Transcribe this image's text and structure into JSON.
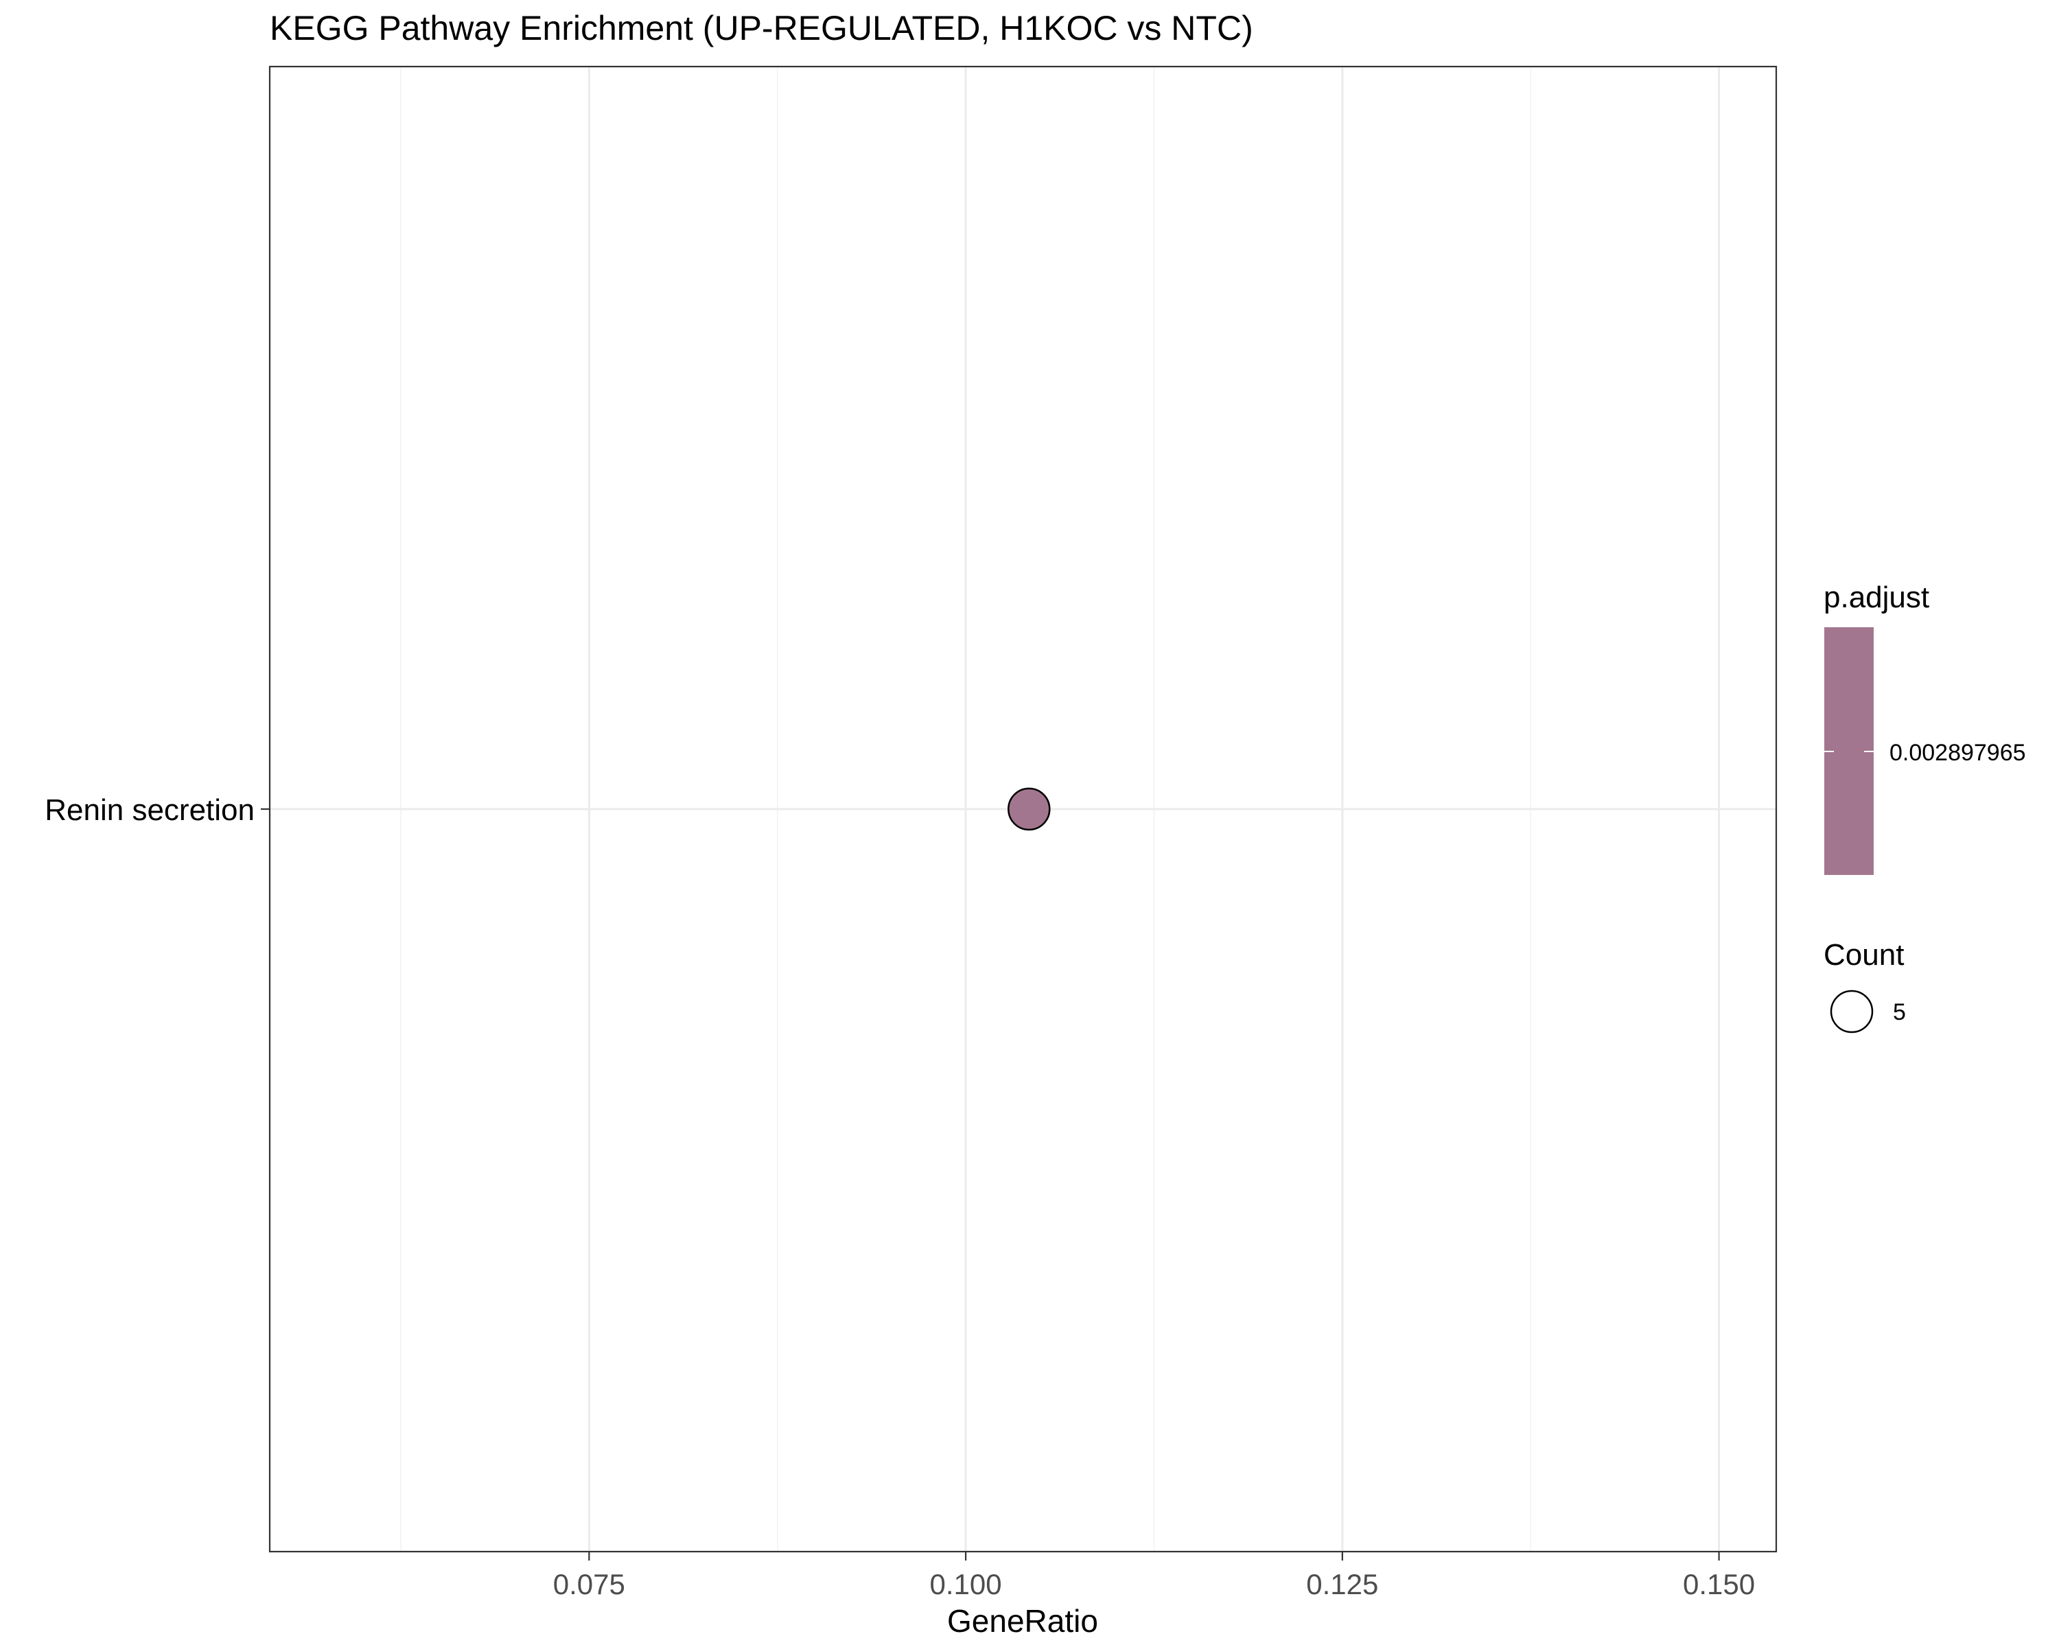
{
  "chart_data": {
    "type": "scatter",
    "title": "KEGG Pathway Enrichment (UP-REGULATED, H1KOC vs NTC)",
    "xlabel": "GeneRatio",
    "ylabel": "",
    "xlim": [
      0.0538,
      0.1538
    ],
    "x_ticks": [
      0.075,
      0.1,
      0.125,
      0.15
    ],
    "x_tick_labels": [
      "0.075",
      "0.100",
      "0.125",
      "0.150"
    ],
    "x_minor_ticks": [
      0.0625,
      0.0875,
      0.1125,
      0.1375
    ],
    "categories": [
      "Renin secretion"
    ],
    "points": [
      {
        "category": "Renin secretion",
        "x": 0.1042,
        "count": 5,
        "p_adjust": 0.002897965
      }
    ],
    "grid": true,
    "legend_position": "right",
    "legend": {
      "color_title": "p.adjust",
      "color_value_label": "0.002897965",
      "size_title": "Count",
      "size_value_label": "5"
    },
    "colors": {
      "point_fill": "#a3768f",
      "point_stroke": "#000000",
      "colorbar_fill": "#a3768f",
      "grid_major": "#ebebeb",
      "grid_minor": "#f2f2f2",
      "panel_border": "#333333"
    }
  }
}
